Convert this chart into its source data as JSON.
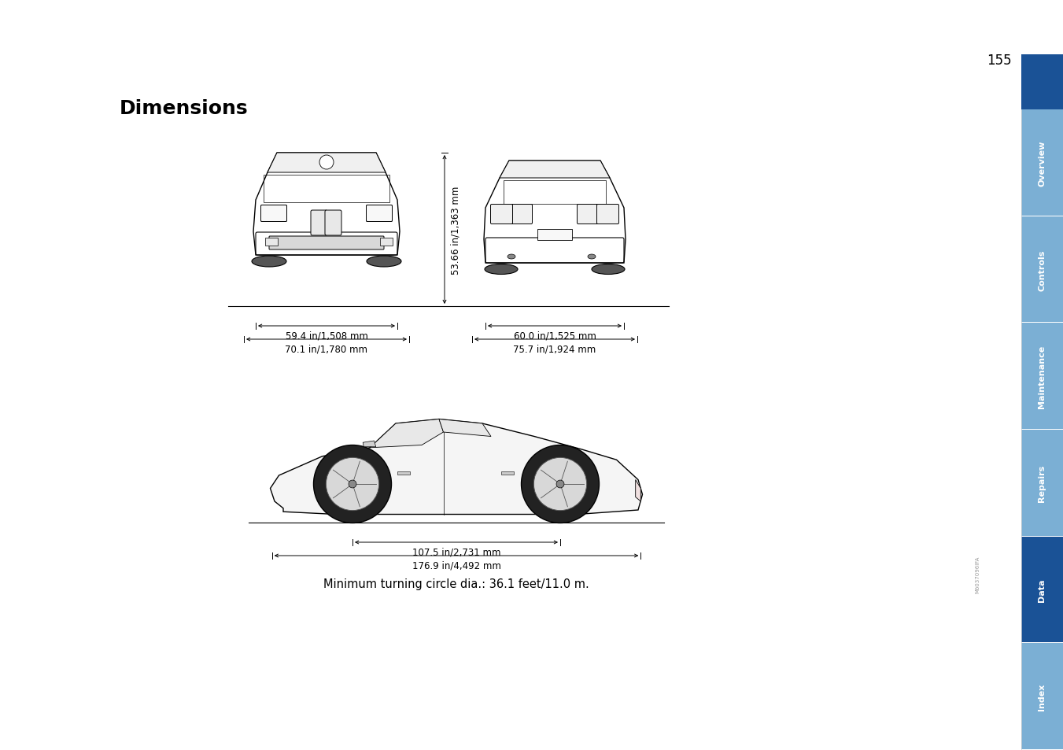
{
  "title": "Dimensions",
  "page_number": "155",
  "background_color": "#ffffff",
  "title_color": "#000000",
  "title_fontsize": 18,
  "page_num_fontsize": 12,
  "sidebar_labels": [
    "Overview",
    "Controls",
    "Maintenance",
    "Repairs",
    "Data",
    "Index"
  ],
  "sidebar_active": "Data",
  "sidebar_active_color": "#1a5296",
  "sidebar_inactive_color": "#7bafd4",
  "sidebar_text_color": "#ffffff",
  "sidebar_label_fontsize": 8,
  "dim_front_width1": "59.4 in/1,508 mm",
  "dim_front_width2": "70.1 in/1,780 mm",
  "dim_rear_width1": "60.0 in/1,525 mm",
  "dim_rear_width2": "75.7 in/1,924 mm",
  "dim_height": "53.66 in/1,363 mm",
  "dim_wheelbase": "107.5 in/2,731 mm",
  "dim_length": "176.9 in/4,492 mm",
  "dim_turning": "Minimum turning circle dia.: 36.1 feet/11.0 m.",
  "line_color": "#000000",
  "text_color": "#000000",
  "annotation_fontsize": 8.5,
  "turning_fontsize": 10.5,
  "watermark_text": "Mö037096IFA",
  "watermark_fontsize": 5
}
